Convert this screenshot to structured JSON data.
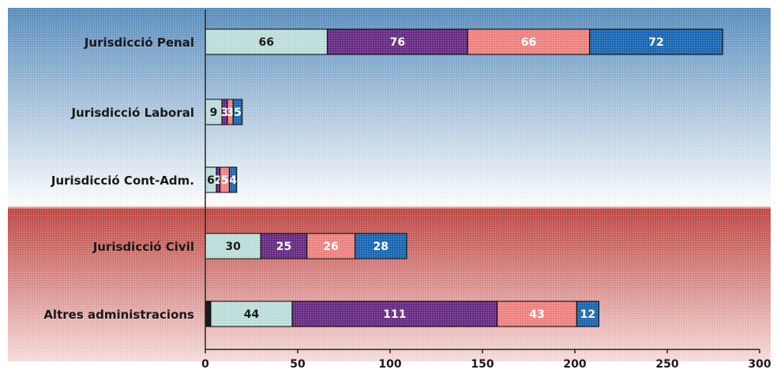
{
  "chart_data": {
    "type": "bar",
    "orientation": "horizontal",
    "stacked": true,
    "categories": [
      "Jurisdicció Penal",
      "Jurisdicció Laboral",
      "Jurisdicció Cont-Adm.",
      "Jurisdicció Civil",
      "Altres administracions"
    ],
    "series": [
      {
        "values": [
          66,
          9,
          6,
          30,
          44
        ],
        "color": "#bfe0dc",
        "label_color": "#1a1a1a"
      },
      {
        "values": [
          76,
          3,
          2,
          25,
          111
        ],
        "color": "#6a2f86",
        "label_color": "#ffffff"
      },
      {
        "values": [
          66,
          3,
          5,
          26,
          43
        ],
        "color": "#f08683",
        "label_color": "#ffffff"
      },
      {
        "values": [
          72,
          5,
          4,
          28,
          12
        ],
        "color": "#1e6ab6",
        "label_color": "#ffffff"
      }
    ],
    "leading_values": [
      0,
      0,
      0,
      0,
      3
    ],
    "leading_color": "#1a1a1a",
    "segment_labels": [
      [
        "66",
        "76",
        "66",
        "72"
      ],
      [
        "9",
        "3",
        "3",
        "5"
      ],
      [
        "6",
        "2",
        "5",
        "4"
      ],
      [
        "30",
        "25",
        "26",
        "28"
      ],
      [
        "44",
        "111",
        "43",
        "12"
      ]
    ],
    "xlim": [
      0,
      300
    ],
    "x_ticks": [
      0,
      50,
      100,
      150,
      200,
      250,
      300
    ],
    "xlabel": "",
    "ylabel": "",
    "title": "",
    "legend": "none",
    "grid": false,
    "background": {
      "top": "#5b8fbf",
      "middle": "#ffffff",
      "bottom": "#c14a45"
    }
  }
}
